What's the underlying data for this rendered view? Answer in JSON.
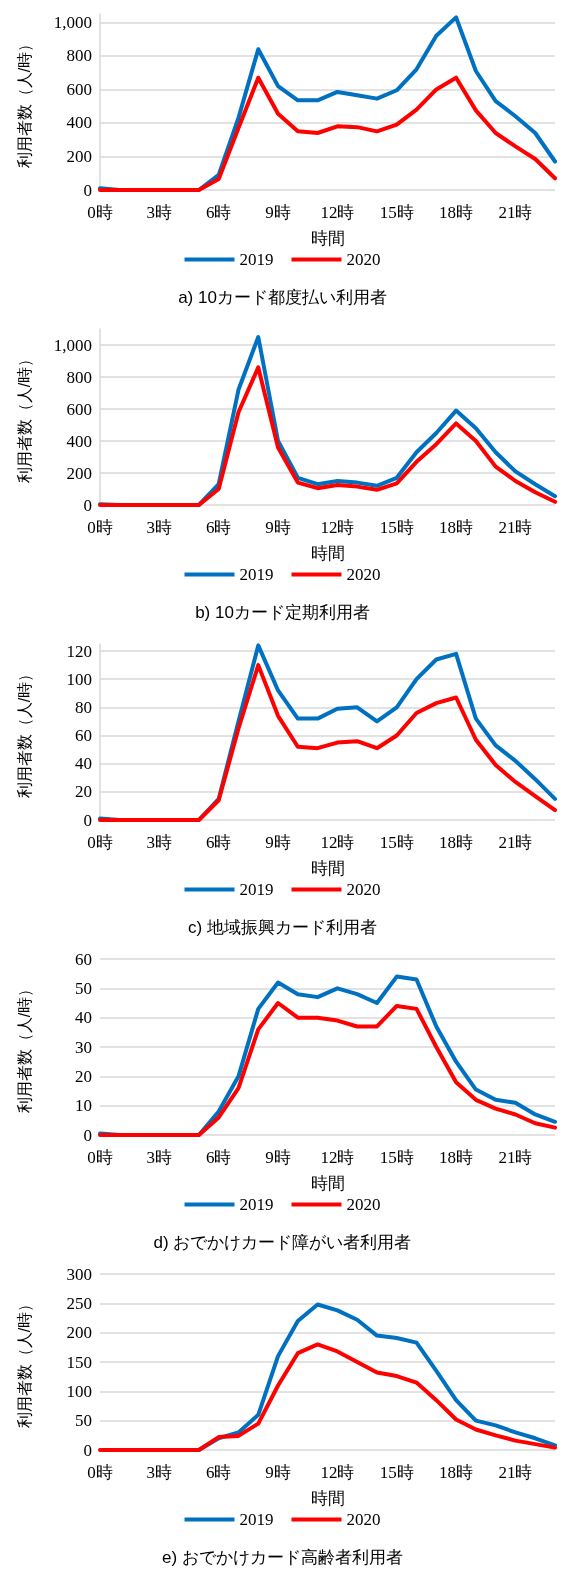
{
  "chart_data": [
    {
      "type": "line",
      "title": "a) 10カード都度払い利用者",
      "xlabel": "時間",
      "ylabel": "利用者数（人/時）",
      "categories": [
        "0時",
        null,
        null,
        "3時",
        null,
        null,
        "6時",
        null,
        null,
        "9時",
        null,
        null,
        "12時",
        null,
        null,
        "15時",
        null,
        null,
        "18時",
        null,
        null,
        "21時",
        null,
        null
      ],
      "series": [
        {
          "name": "2019",
          "color": "#0070c0",
          "values": [
            10,
            0,
            0,
            0,
            0,
            0,
            90,
            430,
            840,
            620,
            535,
            535,
            585,
            565,
            545,
            595,
            720,
            920,
            1030,
            710,
            530,
            440,
            340,
            170
          ]
        },
        {
          "name": "2020",
          "color": "#ff0000",
          "values": [
            0,
            0,
            0,
            0,
            0,
            0,
            65,
            370,
            670,
            455,
            350,
            340,
            380,
            375,
            350,
            390,
            480,
            600,
            670,
            475,
            340,
            260,
            185,
            70
          ]
        }
      ],
      "ylim": [
        0,
        1050
      ],
      "yticks": [
        0,
        200,
        400,
        600,
        800,
        {
          "value": 1000,
          "label": "1,000"
        }
      ],
      "grid": "y",
      "legend": "bottom",
      "marker": "none",
      "line_style": "solid"
    },
    {
      "type": "line",
      "title": "b) 10カード定期利用者",
      "xlabel": "時間",
      "ylabel": "利用者数（人/時）",
      "categories": [
        "0時",
        null,
        null,
        "3時",
        null,
        null,
        "6時",
        null,
        null,
        "9時",
        null,
        null,
        "12時",
        null,
        null,
        "15時",
        null,
        null,
        "18時",
        null,
        null,
        "21時",
        null,
        null
      ],
      "series": [
        {
          "name": "2019",
          "color": "#0070c0",
          "values": [
            5,
            0,
            0,
            0,
            0,
            0,
            130,
            720,
            1050,
            400,
            170,
            130,
            150,
            140,
            120,
            170,
            330,
            450,
            590,
            480,
            330,
            210,
            130,
            55
          ]
        },
        {
          "name": "2020",
          "color": "#ff0000",
          "values": [
            0,
            0,
            0,
            0,
            0,
            0,
            100,
            580,
            860,
            360,
            140,
            105,
            125,
            115,
            95,
            135,
            270,
            380,
            510,
            400,
            240,
            150,
            80,
            20
          ]
        }
      ],
      "ylim": [
        0,
        1100
      ],
      "yticks": [
        0,
        200,
        400,
        600,
        800,
        {
          "value": 1000,
          "label": "1,000"
        }
      ],
      "grid": "y",
      "legend": "bottom",
      "marker": "none",
      "line_style": "solid"
    },
    {
      "type": "line",
      "title": "c) 地域振興カード利用者",
      "xlabel": "時間",
      "ylabel": "利用者数（人/時）",
      "categories": [
        "0時",
        null,
        null,
        "3時",
        null,
        null,
        "6時",
        null,
        null,
        "9時",
        null,
        null,
        "12時",
        null,
        null,
        "15時",
        null,
        null,
        "18時",
        null,
        null,
        "21時",
        null,
        null
      ],
      "series": [
        {
          "name": "2019",
          "color": "#0070c0",
          "values": [
            1,
            0,
            0,
            0,
            0,
            0,
            15,
            70,
            124,
            92,
            72,
            72,
            79,
            80,
            70,
            80,
            100,
            114,
            118,
            72,
            53,
            42,
            29,
            15
          ]
        },
        {
          "name": "2020",
          "color": "#ff0000",
          "values": [
            0,
            0,
            0,
            0,
            0,
            0,
            14,
            65,
            110,
            74,
            52,
            51,
            55,
            56,
            51,
            60,
            76,
            83,
            87,
            57,
            39,
            27,
            17,
            7
          ]
        }
      ],
      "ylim": [
        0,
        125
      ],
      "yticks": [
        0,
        20,
        40,
        60,
        80,
        100,
        120
      ],
      "grid": "y",
      "legend": "bottom",
      "marker": "none",
      "line_style": "solid"
    },
    {
      "type": "line",
      "title": "d) おでかけカード障がい者利用者",
      "xlabel": "時間",
      "ylabel": "利用者数（人/時）",
      "categories": [
        "0時",
        null,
        null,
        "3時",
        null,
        null,
        "6時",
        null,
        null,
        "9時",
        null,
        null,
        "12時",
        null,
        null,
        "15時",
        null,
        null,
        "18時",
        null,
        null,
        "21時",
        null,
        null
      ],
      "series": [
        {
          "name": "2019",
          "color": "#0070c0",
          "values": [
            0.5,
            0,
            0,
            0,
            0,
            0,
            8,
            20,
            43,
            52,
            48,
            47,
            50,
            48,
            45,
            54,
            53,
            37,
            25,
            15.5,
            12,
            11,
            7,
            4.5
          ]
        },
        {
          "name": "2020",
          "color": "#ff0000",
          "values": [
            0,
            0,
            0,
            0,
            0,
            0,
            6,
            16,
            36,
            45,
            40,
            40,
            39,
            37,
            37,
            44,
            43,
            30,
            18,
            12,
            9,
            7,
            4,
            2.5
          ]
        }
      ],
      "ylim": [
        0,
        60
      ],
      "yticks": [
        0,
        10,
        20,
        30,
        40,
        50,
        60
      ],
      "grid": "y",
      "legend": "bottom",
      "marker": "none",
      "line_style": "solid"
    },
    {
      "type": "line",
      "title": "e) おでかけカード高齢者利用者",
      "xlabel": "時間",
      "ylabel": "利用者数（人/時）",
      "categories": [
        "0時",
        null,
        null,
        "3時",
        null,
        null,
        "6時",
        null,
        null,
        "9時",
        null,
        null,
        "12時",
        null,
        null,
        "15時",
        null,
        null,
        "18時",
        null,
        null,
        "21時",
        null,
        null
      ],
      "series": [
        {
          "name": "2019",
          "color": "#0070c0",
          "values": [
            null,
            null,
            null,
            null,
            0,
            0,
            20,
            30,
            60,
            160,
            220,
            248,
            238,
            222,
            195,
            191,
            183,
            135,
            85,
            50,
            42,
            30,
            20,
            8
          ]
        },
        {
          "name": "2020",
          "color": "#ff0000",
          "values": [
            0,
            0,
            0,
            0,
            0,
            0,
            22,
            24,
            45,
            110,
            165,
            180,
            168,
            150,
            132,
            126,
            115,
            85,
            52,
            35,
            25,
            16,
            10,
            4
          ]
        }
      ],
      "ylim": [
        0,
        300
      ],
      "yticks": [
        0,
        50,
        100,
        150,
        200,
        250,
        300
      ],
      "grid": "y",
      "legend": "bottom",
      "marker": "none",
      "line_style": "solid"
    }
  ]
}
